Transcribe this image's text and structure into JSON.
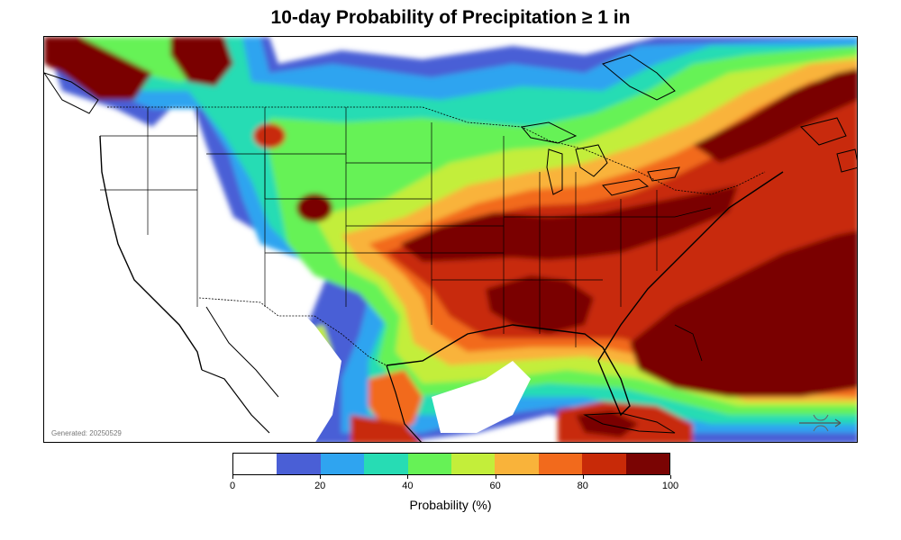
{
  "title": "10-day Probability of Precipitation ≥ 1 in",
  "generated_text": "Generated: 20250529",
  "colorbar": {
    "label": "Probability (%)",
    "ticks": [
      "0",
      "20",
      "40",
      "60",
      "80",
      "100"
    ],
    "colors": [
      "#ffffff",
      "#4a5fd6",
      "#2fa4f0",
      "#27dcb4",
      "#66f256",
      "#c3ee3a",
      "#f9b33a",
      "#f26a1c",
      "#c82a08",
      "#7a0403"
    ]
  },
  "map": {
    "region": "Contiguous United States, Mexico, Caribbean and western Atlantic",
    "high_probability_areas": [
      "Central Plains to Ohio Valley",
      "Southeast United States",
      "Western Atlantic",
      "Pacific Northwest",
      "Eastern Canada"
    ]
  }
}
